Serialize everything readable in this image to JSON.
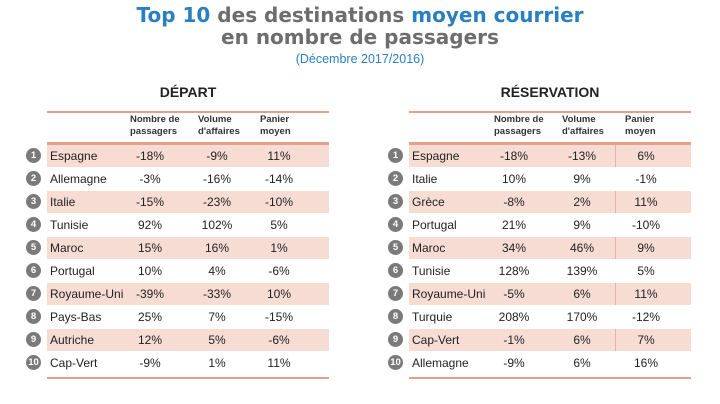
{
  "header": {
    "title_part1": "Top 10",
    "title_part2": " des destinations ",
    "title_part3": "moyen courrier",
    "title_line2": "en nombre de passagers",
    "subtitle": "(Décembre 2017/2016)"
  },
  "colors": {
    "accent_blue": "#2a7fc0",
    "shade": "#f7dcd4",
    "rule": "#e3a08d",
    "badge": "#7a7a7a"
  },
  "depart": {
    "title": "DÉPART",
    "columns": [
      "Nombre de passagers",
      "Volume d'affaires",
      "Panier moyen"
    ],
    "col_lines": [
      [
        "Nombre de",
        "passagers"
      ],
      [
        "Volume",
        "d'affaires"
      ],
      [
        "Panier",
        "moyen"
      ]
    ],
    "rows": [
      {
        "rank": "1",
        "name": "Espagne",
        "passagers": "-18%",
        "volume": "-9%",
        "panier": "11%"
      },
      {
        "rank": "2",
        "name": "Allemagne",
        "passagers": "-3%",
        "volume": "-16%",
        "panier": "-14%"
      },
      {
        "rank": "3",
        "name": "Italie",
        "passagers": "-15%",
        "volume": "-23%",
        "panier": "-10%"
      },
      {
        "rank": "4",
        "name": "Tunisie",
        "passagers": "92%",
        "volume": "102%",
        "panier": "5%"
      },
      {
        "rank": "5",
        "name": "Maroc",
        "passagers": "15%",
        "volume": "16%",
        "panier": "1%"
      },
      {
        "rank": "6",
        "name": "Portugal",
        "passagers": "10%",
        "volume": "4%",
        "panier": "-6%"
      },
      {
        "rank": "7",
        "name": "Royaume-Uni",
        "passagers": "-39%",
        "volume": "-33%",
        "panier": "10%"
      },
      {
        "rank": "8",
        "name": "Pays-Bas",
        "passagers": "25%",
        "volume": "7%",
        "panier": "-15%"
      },
      {
        "rank": "9",
        "name": "Autriche",
        "passagers": "12%",
        "volume": "5%",
        "panier": "-6%"
      },
      {
        "rank": "10",
        "name": "Cap-Vert",
        "passagers": "-9%",
        "volume": "1%",
        "panier": "11%"
      }
    ]
  },
  "reservation": {
    "title": "RÉSERVATION",
    "col_lines": [
      [
        "Nombre de",
        "passagers"
      ],
      [
        "Volume",
        "d'affaires"
      ],
      [
        "Panier",
        "moyen"
      ]
    ],
    "rows": [
      {
        "rank": "1",
        "name": "Espagne",
        "passagers": "-18%",
        "volume": "-13%",
        "panier": "6%"
      },
      {
        "rank": "2",
        "name": "Italie",
        "passagers": "10%",
        "volume": "9%",
        "panier": "-1%"
      },
      {
        "rank": "3",
        "name": "Grèce",
        "passagers": "-8%",
        "volume": "2%",
        "panier": "11%"
      },
      {
        "rank": "4",
        "name": "Portugal",
        "passagers": "21%",
        "volume": "9%",
        "panier": "-10%"
      },
      {
        "rank": "5",
        "name": "Maroc",
        "passagers": "34%",
        "volume": "46%",
        "panier": "9%"
      },
      {
        "rank": "6",
        "name": "Tunisie",
        "passagers": "128%",
        "volume": "139%",
        "panier": "5%"
      },
      {
        "rank": "7",
        "name": "Royaume-Uni",
        "passagers": "-5%",
        "volume": "6%",
        "panier": "11%"
      },
      {
        "rank": "8",
        "name": "Turquie",
        "passagers": "208%",
        "volume": "170%",
        "panier": "-12%"
      },
      {
        "rank": "9",
        "name": "Cap-Vert",
        "passagers": "-1%",
        "volume": "6%",
        "panier": "7%"
      },
      {
        "rank": "10",
        "name": "Allemagne",
        "passagers": "-9%",
        "volume": "6%",
        "panier": "16%"
      }
    ]
  }
}
